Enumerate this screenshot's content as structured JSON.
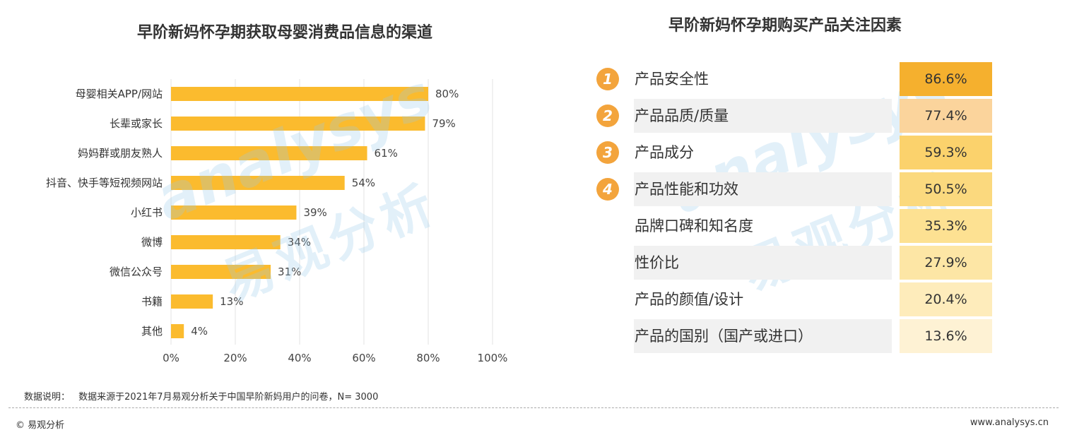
{
  "left_chart": {
    "title": "早阶新妈怀孕期获取母婴消费品信息的渠道"
  },
  "right_panel": {
    "title": "早阶新妈怀孕期购买产品关注因素",
    "factors": [
      {
        "rank": "1",
        "label": "产品安全性",
        "value": "86.6%",
        "color": "#f5b02e"
      },
      {
        "rank": "2",
        "label": "产品品质/质量",
        "value": "77.4%",
        "color": "#fbd49c"
      },
      {
        "rank": "3",
        "label": "产品成分",
        "value": "59.3%",
        "color": "#fbd26c"
      },
      {
        "rank": "4",
        "label": "产品性能和功效",
        "value": "50.5%",
        "color": "#fbd97e"
      },
      {
        "rank": "",
        "label": "品牌口碑和知名度",
        "value": "35.3%",
        "color": "#fde192"
      },
      {
        "rank": "",
        "label": "性价比",
        "value": "27.9%",
        "color": "#fde6a5"
      },
      {
        "rank": "",
        "label": "产品的颜值/设计",
        "value": "20.4%",
        "color": "#feecbb"
      },
      {
        "rank": "",
        "label": "产品的国别（国产或进口）",
        "value": "13.6%",
        "color": "#fef2d4"
      }
    ]
  },
  "watermark": {
    "en": "analysys",
    "cn": "易观分析"
  },
  "footer": {
    "note_label": "数据说明：",
    "note_text": "数据来源于2021年7月易观分析关于中国早阶新妈用户的问卷，N= 3000",
    "brand": "© 易观分析",
    "site": "www.analysys.cn"
  },
  "chart_data": {
    "type": "bar",
    "orientation": "horizontal",
    "title": "早阶新妈怀孕期获取母婴消费品信息的渠道",
    "categories": [
      "母婴相关APP/网站",
      "长辈或家长",
      "妈妈群或朋友熟人",
      "抖音、快手等短视频网站",
      "小红书",
      "微博",
      "微信公众号",
      "书籍",
      "其他"
    ],
    "values": [
      80,
      79,
      61,
      54,
      39,
      34,
      31,
      13,
      4
    ],
    "value_labels": [
      "80%",
      "79%",
      "61%",
      "54%",
      "39%",
      "34%",
      "31%",
      "13%",
      "4%"
    ],
    "xlim": [
      0,
      100
    ],
    "xticks": [
      0,
      20,
      40,
      60,
      80,
      100
    ],
    "xtick_labels": [
      "0%",
      "20%",
      "40%",
      "60%",
      "80%",
      "100%"
    ],
    "bar_color": "#fbbb2e",
    "grid": true
  }
}
